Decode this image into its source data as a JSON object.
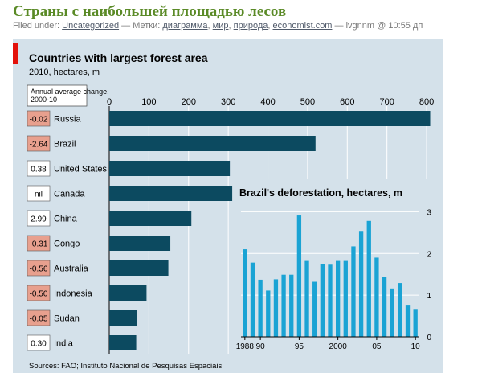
{
  "post": {
    "title": "Страны с наибольшей площадью лесов",
    "filed_under_label": "Filed under:",
    "category": "Uncategorized",
    "tags_label": "— Метки:",
    "tags": [
      "диаграмма",
      "мир",
      "природа",
      "economist.com"
    ],
    "byline": "— ivgnnm @ 10:55 дп"
  },
  "colors": {
    "bar": "#0c4a60",
    "inset_bar": "#1aa3d4",
    "negative_box": "#e8a08e",
    "accent": "#e3120b",
    "panel": "#d4e1ea"
  },
  "chart_data": [
    {
      "type": "bar",
      "orientation": "horizontal",
      "title": "Countries with largest forest area",
      "subtitle": "2010, hectares, m",
      "annotation_header": "Annual average change, 2000-10",
      "categories": [
        "Russia",
        "Brazil",
        "United States",
        "Canada",
        "China",
        "Congo",
        "Australia",
        "Indonesia",
        "Sudan",
        "India"
      ],
      "values": [
        809,
        520,
        304,
        310,
        207,
        154,
        149,
        94,
        70,
        68
      ],
      "annual_change": [
        "-0.02",
        "-2.64",
        "0.38",
        "nil",
        "2.99",
        "-0.31",
        "-0.56",
        "-0.50",
        "-0.05",
        "0.30"
      ],
      "xticks": [
        0,
        100,
        200,
        300,
        400,
        500,
        600,
        700,
        800
      ],
      "xlim": [
        0,
        810
      ],
      "source": "Sources: FAO; Instituto Nacional de Pesquisas Espaciais"
    },
    {
      "type": "bar",
      "title": "Brazil's deforestation, hectares, m",
      "x": [
        1988,
        1989,
        1990,
        1991,
        1992,
        1993,
        1994,
        1995,
        1996,
        1997,
        1998,
        1999,
        2000,
        2001,
        2002,
        2003,
        2004,
        2005,
        2006,
        2007,
        2008,
        2009,
        2010
      ],
      "values": [
        2.1,
        1.78,
        1.37,
        1.11,
        1.38,
        1.49,
        1.49,
        2.91,
        1.82,
        1.32,
        1.74,
        1.73,
        1.82,
        1.82,
        2.17,
        2.54,
        2.78,
        1.9,
        1.43,
        1.16,
        1.29,
        0.75,
        0.65
      ],
      "xtick_labels": [
        "1988",
        "90",
        "95",
        "2000",
        "05",
        "10"
      ],
      "xtick_years": [
        1988,
        1990,
        1995,
        2000,
        2005,
        2010
      ],
      "yticks": [
        0,
        1,
        2,
        3
      ],
      "ylim": [
        0,
        3.2
      ]
    }
  ]
}
